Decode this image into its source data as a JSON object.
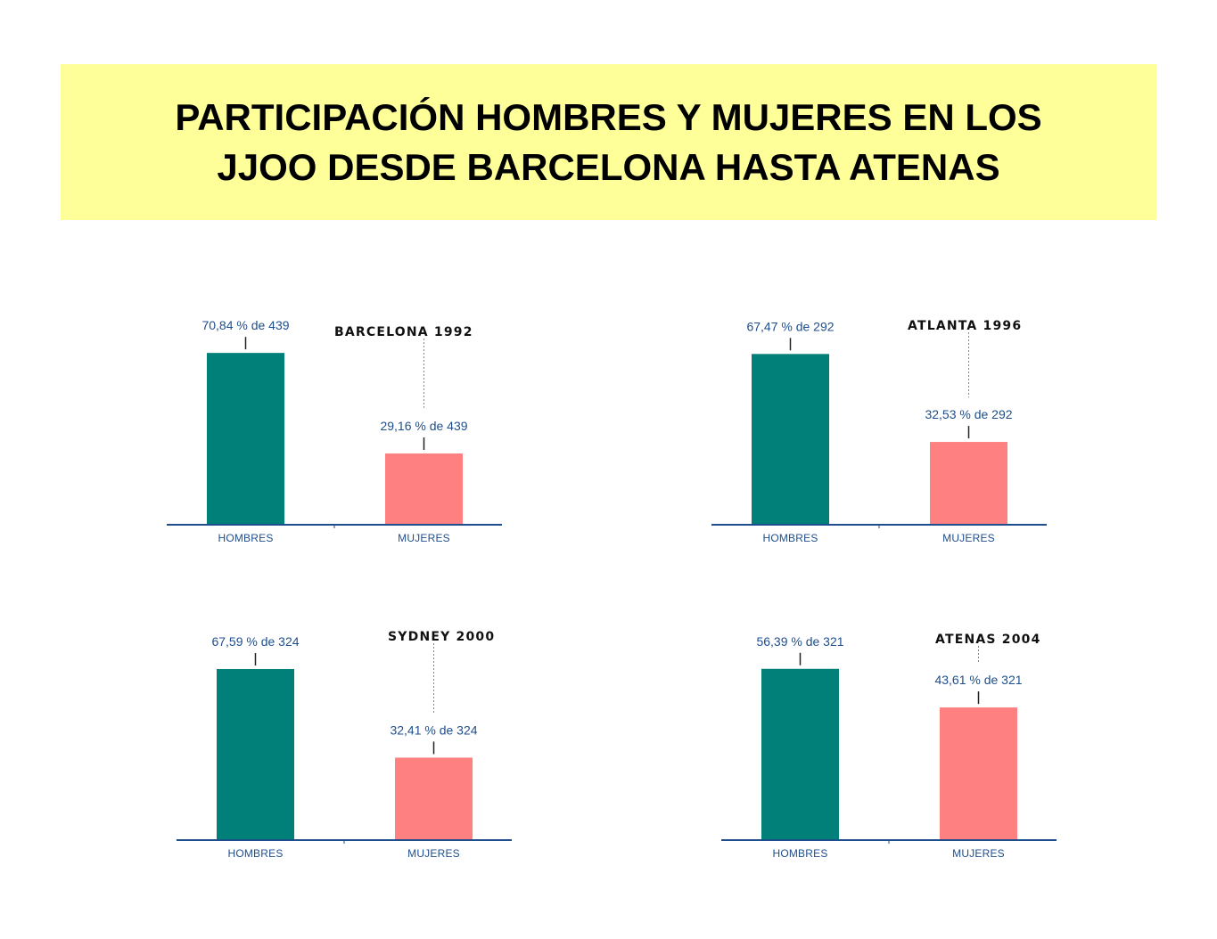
{
  "title": {
    "line1": "PARTICIPACIÓN HOMBRES Y MUJERES EN LOS",
    "line2": "JJOO DESDE BARCELONA HASTA ATENAS"
  },
  "colors": {
    "hombres": "#008078",
    "mujeres": "#ff8080",
    "axis": "#1f4e8c",
    "banner": "#ffff99"
  },
  "chart_data": [
    {
      "type": "bar",
      "title": "BARCELONA 1992",
      "categories": [
        "HOMBRES",
        "MUJERES"
      ],
      "values": [
        70.84,
        29.16
      ],
      "data_labels": [
        "70,84 % de 439",
        "29,16 % de 439"
      ],
      "total": 439,
      "ylim": [
        0,
        72
      ]
    },
    {
      "type": "bar",
      "title": "ATLANTA 1996",
      "categories": [
        "HOMBRES",
        "MUJERES"
      ],
      "values": [
        67.47,
        32.53
      ],
      "data_labels": [
        "67,47 % de 292",
        "32,53 % de 292"
      ],
      "total": 292,
      "ylim": [
        0,
        69
      ]
    },
    {
      "type": "bar",
      "title": "SYDNEY 2000",
      "categories": [
        "HOMBRES",
        "MUJERES"
      ],
      "values": [
        67.59,
        32.41
      ],
      "data_labels": [
        "67,59 % de 324",
        "32,41 % de 324"
      ],
      "total": 324,
      "ylim": [
        0,
        69
      ]
    },
    {
      "type": "bar",
      "title": "ATENAS 2004",
      "categories": [
        "HOMBRES",
        "MUJERES"
      ],
      "values": [
        56.39,
        43.61
      ],
      "data_labels": [
        "56,39 % de 321",
        "43,61 % de 321"
      ],
      "total": 321,
      "ylim": [
        0,
        57.5
      ]
    }
  ]
}
